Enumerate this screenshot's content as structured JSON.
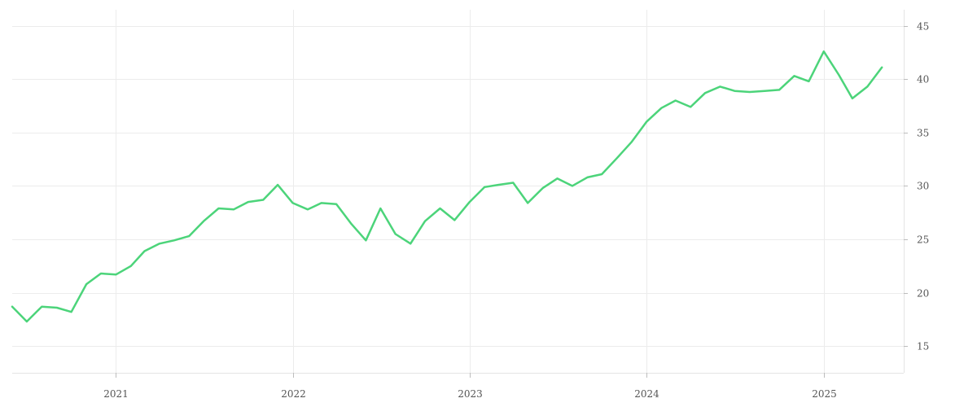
{
  "chart_data": {
    "type": "line",
    "title": "",
    "xlabel": "",
    "ylabel": "",
    "grid": true,
    "y_axis_side": "right",
    "ylim": [
      12.5,
      46.5
    ],
    "xlim": [
      "2020-06-01",
      "2025-06-15"
    ],
    "yticks": [
      15,
      20,
      25,
      30,
      35,
      40,
      45
    ],
    "ytick_labels": [
      "15",
      "20",
      "25",
      "30",
      "35",
      "40",
      "45"
    ],
    "xticks": [
      "2021-01-01",
      "2022-01-01",
      "2023-01-01",
      "2024-01-01",
      "2025-01-01"
    ],
    "xtick_labels": [
      "2021",
      "2022",
      "2023",
      "2024",
      "2025"
    ],
    "colors": {
      "line": "#4cd47a"
    },
    "series": [
      {
        "x": [
          "2020-06-01",
          "2020-07-01",
          "2020-08-01",
          "2020-09-01",
          "2020-10-01",
          "2020-11-01",
          "2020-12-01",
          "2021-01-01",
          "2021-02-01",
          "2021-03-01",
          "2021-04-01",
          "2021-05-01",
          "2021-06-01",
          "2021-07-01",
          "2021-08-01",
          "2021-09-01",
          "2021-10-01",
          "2021-11-01",
          "2021-12-01",
          "2022-01-01",
          "2022-02-01",
          "2022-03-01",
          "2022-04-01",
          "2022-05-01",
          "2022-06-01",
          "2022-07-01",
          "2022-08-01",
          "2022-09-01",
          "2022-10-01",
          "2022-11-01",
          "2022-12-01",
          "2023-01-01",
          "2023-02-01",
          "2023-03-01",
          "2023-04-01",
          "2023-05-01",
          "2023-06-01",
          "2023-07-01",
          "2023-08-01",
          "2023-09-01",
          "2023-10-01",
          "2023-11-01",
          "2023-12-01",
          "2024-01-01",
          "2024-02-01",
          "2024-03-01",
          "2024-04-01",
          "2024-05-01",
          "2024-06-01",
          "2024-07-01",
          "2024-08-01",
          "2024-09-01",
          "2024-10-01",
          "2024-11-01",
          "2024-12-01",
          "2025-01-01",
          "2025-02-01",
          "2025-03-01",
          "2025-04-01",
          "2025-05-01"
        ],
        "values": [
          18.7,
          17.3,
          18.7,
          18.6,
          18.2,
          20.8,
          21.8,
          21.7,
          22.5,
          23.9,
          24.6,
          24.9,
          25.3,
          26.7,
          27.9,
          27.8,
          28.5,
          28.7,
          30.1,
          28.4,
          27.8,
          28.4,
          28.3,
          26.5,
          24.9,
          27.9,
          25.5,
          24.6,
          26.7,
          27.9,
          26.8,
          28.5,
          29.9,
          30.1,
          30.3,
          28.4,
          29.8,
          30.7,
          30.0,
          30.8,
          31.1,
          32.6,
          34.1,
          36.0,
          37.3,
          38.0,
          37.4,
          38.7,
          39.3,
          38.9,
          38.8,
          38.9,
          39.0,
          40.3,
          39.8,
          42.6,
          40.4,
          38.2,
          39.3,
          41.1
        ]
      }
    ]
  }
}
